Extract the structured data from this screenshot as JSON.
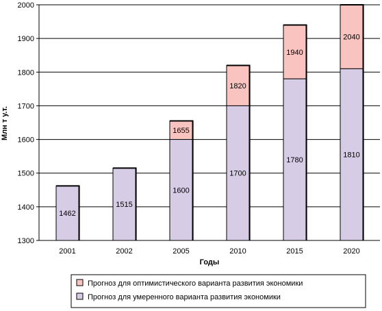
{
  "chart_data": {
    "type": "bar",
    "stacked_overlay": true,
    "categories": [
      "2001",
      "2002",
      "2005",
      "2010",
      "2015",
      "2020"
    ],
    "series": [
      {
        "name": "Прогноз для умеренного варианта развития экономики",
        "values": [
          1462,
          1515,
          1600,
          1700,
          1780,
          1810
        ],
        "labels": [
          "1462",
          "1515",
          "1600",
          "1700",
          "1780",
          "1810"
        ],
        "color": "#d7cce6"
      },
      {
        "name": "Прогноз для оптимистического варианта развития экономики",
        "values": [
          null,
          null,
          1655,
          1820,
          1940,
          2040
        ],
        "labels": [
          "",
          "",
          "1655",
          "1820",
          "1940",
          "2040"
        ],
        "color": "#f9c3bf"
      }
    ],
    "xlabel": "Годы",
    "ylabel": "Млн т у.т.",
    "ylim": [
      1300,
      2000
    ],
    "yticks": [
      1300,
      1400,
      1500,
      1600,
      1700,
      1800,
      1900,
      2000
    ],
    "grid": true,
    "legend_position": "bottom"
  }
}
